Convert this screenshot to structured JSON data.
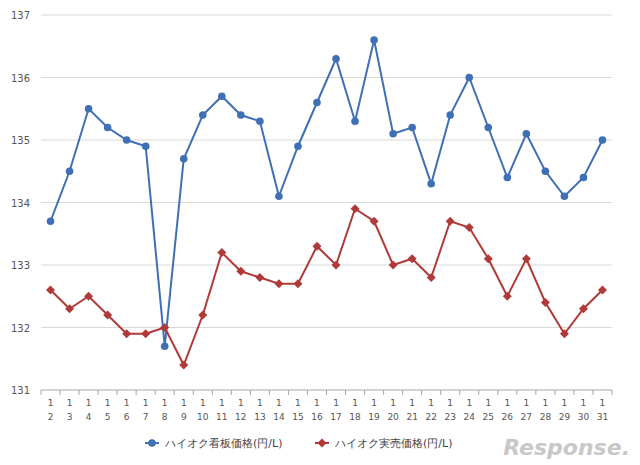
{
  "chart_data": {
    "type": "line",
    "categories": [
      "1\n2",
      "1\n3",
      "1\n4",
      "1\n5",
      "1\n6",
      "1\n7",
      "1\n8",
      "1\n9",
      "1\n10",
      "1\n11",
      "1\n12",
      "1\n13",
      "1\n14",
      "1\n15",
      "1\n16",
      "1\n17",
      "1\n18",
      "1\n19",
      "1\n20",
      "1\n21",
      "1\n22",
      "1\n23",
      "1\n24",
      "1\n25",
      "1\n26",
      "1\n27",
      "1\n28",
      "1\n29",
      "1\n30",
      "1\n31"
    ],
    "series": [
      {
        "name": "ハイオク看板価格(円/L)",
        "color": "#3f6fb5",
        "marker": "circle",
        "line_style": "solid",
        "values": [
          133.7,
          134.5,
          135.5,
          135.2,
          135.0,
          134.9,
          131.7,
          134.7,
          135.4,
          135.7,
          135.4,
          135.3,
          134.1,
          134.9,
          135.6,
          136.3,
          135.3,
          136.6,
          135.1,
          135.2,
          134.3,
          135.4,
          136.0,
          135.2,
          134.4,
          135.1,
          134.5,
          134.1,
          134.4,
          135.0
        ]
      },
      {
        "name": "ハイオク実売価格(円/L)",
        "color": "#b03a3a",
        "marker": "diamond",
        "line_style": "solid",
        "values": [
          132.6,
          132.3,
          132.5,
          132.2,
          131.9,
          131.9,
          132.0,
          131.4,
          132.2,
          133.2,
          132.9,
          132.8,
          132.7,
          132.7,
          133.3,
          133.0,
          133.9,
          133.7,
          133.0,
          133.1,
          132.8,
          133.7,
          133.6,
          133.1,
          132.5,
          133.1,
          132.4,
          131.9,
          132.3,
          132.6
        ]
      }
    ],
    "ylim": [
      131,
      137
    ],
    "yticks": [
      131,
      132,
      133,
      134,
      135,
      136,
      137
    ],
    "grid": true,
    "legend": "bottom",
    "annotations": [
      "Response."
    ]
  }
}
